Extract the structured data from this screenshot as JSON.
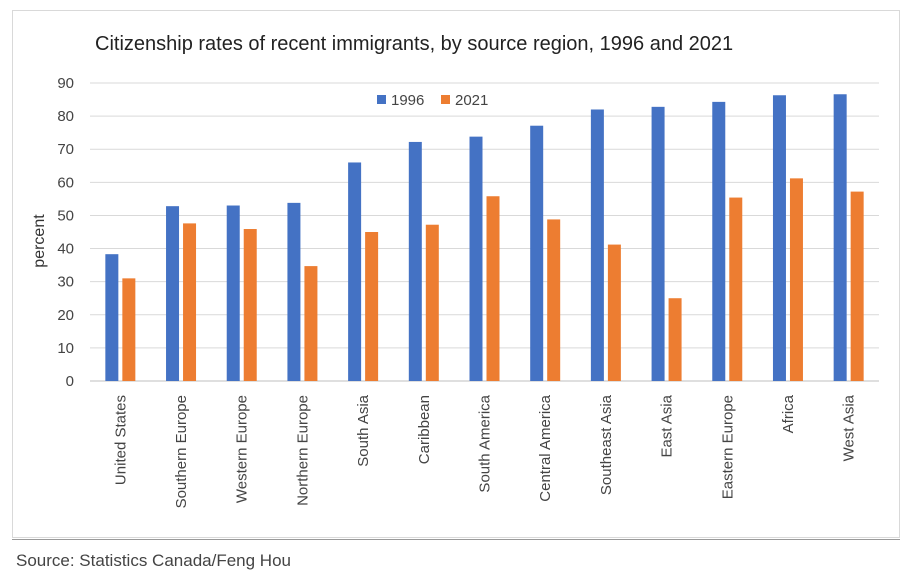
{
  "source": "Source: Statistics Canada/Feng Hou",
  "colors": {
    "s1996": "#4472C4",
    "s2021": "#ED7D31",
    "grid": "#d9d9d9",
    "axis": "#bfbfbf"
  },
  "chart_data": {
    "type": "bar",
    "title": "Citizenship rates of recent immigrants, by source region, 1996 and 2021",
    "xlabel": "",
    "ylabel": "percent",
    "ylim": [
      0,
      90
    ],
    "yticks": [
      0,
      10,
      20,
      30,
      40,
      50,
      60,
      70,
      80,
      90
    ],
    "grid": true,
    "legend_position": "top-center",
    "categories": [
      "United States",
      "Southern Europe",
      "Western Europe",
      "Northern Europe",
      "South Asia",
      "Caribbean",
      "South America",
      "Central America",
      "Southeast Asia",
      "East Asia",
      "Eastern Europe",
      "Africa",
      "West Asia"
    ],
    "series": [
      {
        "name": "1996",
        "color": "#4472C4",
        "values": [
          38.3,
          52.8,
          53.0,
          53.8,
          66.0,
          72.2,
          73.8,
          77.1,
          82.0,
          82.8,
          84.3,
          86.3,
          86.6
        ]
      },
      {
        "name": "2021",
        "color": "#ED7D31",
        "values": [
          31.0,
          47.6,
          45.9,
          34.7,
          45.0,
          47.2,
          55.8,
          48.8,
          41.2,
          25.0,
          55.4,
          61.2,
          57.2
        ]
      }
    ]
  }
}
